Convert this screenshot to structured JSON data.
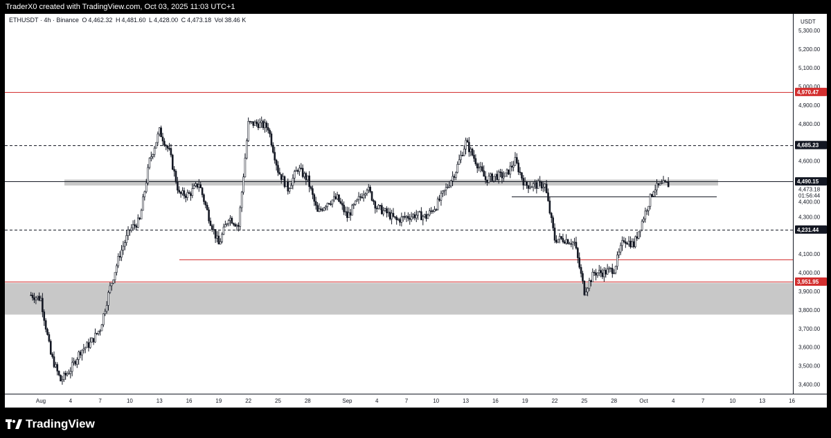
{
  "caption": "TraderX0 created with TradingView.com, Oct 03, 2025 11:03 UTC+1",
  "legend": {
    "symbol": "ETHUSDT · 4h · Binance",
    "open_label": "O",
    "open": "4,462.32",
    "high_label": "H",
    "high": "4,481.60",
    "low_label": "L",
    "low": "4,428.00",
    "close_label": "C",
    "close": "4,473.18",
    "vol_label": "Vol",
    "vol": "38.46 K"
  },
  "axis": {
    "currency": "USDT",
    "price_ticks": [
      "5,300.00",
      "5,200.00",
      "5,100.00",
      "5,000.00",
      "4,900.00",
      "4,800.00",
      "4,600.00",
      "4,300.00",
      "4,100.00",
      "4,000.00",
      "3,900.00",
      "3,800.00",
      "3,700.00",
      "3,600.00",
      "3,500.00",
      "3,400.00"
    ],
    "time_ticks": [
      "Aug",
      "4",
      "7",
      "10",
      "13",
      "16",
      "19",
      "22",
      "25",
      "28",
      "Sep",
      "4",
      "7",
      "10",
      "13",
      "16",
      "19",
      "22",
      "25",
      "28",
      "Oct",
      "4",
      "7",
      "10",
      "13",
      "16"
    ]
  },
  "price_tags": [
    {
      "label": "4,970.47",
      "color": "#d32f2f"
    },
    {
      "label": "4,685.23",
      "color": "#131722"
    },
    {
      "label": "4,490.15",
      "color": "#131722"
    },
    {
      "label": "4,231.44",
      "color": "#131722"
    },
    {
      "label": "3,951.95",
      "color": "#d32f2f"
    }
  ],
  "current": {
    "price": "4,473.18",
    "countdown": "01:56:44",
    "extra": "4,400.00"
  },
  "branding": "TradingView",
  "chart_data": {
    "type": "candlestick",
    "symbol": "ETHUSDT",
    "interval": "4h",
    "exchange": "Binance",
    "ylim": [
      3350,
      5390
    ],
    "ohlc_last": {
      "open": 4462.32,
      "high": 4481.6,
      "low": 4428.0,
      "close": 4473.18,
      "volume": "38.46 K"
    },
    "horizontal_levels": [
      {
        "price": 4970.47,
        "style": "solid",
        "color": "#d32f2f"
      },
      {
        "price": 4685.23,
        "style": "dashed",
        "color": "#131722"
      },
      {
        "price": 4490.15,
        "style": "solid",
        "color": "#131722"
      },
      {
        "price": 4231.44,
        "style": "dashed",
        "color": "#131722"
      },
      {
        "price": 4070,
        "style": "solid",
        "color": "#d32f2f"
      },
      {
        "price": 4410,
        "style": "solid",
        "color": "#131722"
      },
      {
        "price": 3951.95,
        "style": "solid",
        "color": "#d32f2f"
      }
    ],
    "zones": [
      {
        "from": 4468,
        "to": 4500,
        "color": "#c8c8c8"
      },
      {
        "from": 3775,
        "to": 3945,
        "color": "#c8c8c8"
      }
    ],
    "price_path": [
      [
        "Jul 31",
        3880
      ],
      [
        "Aug 1",
        3860
      ],
      [
        "Aug 2",
        3560
      ],
      [
        "Aug 3",
        3420
      ],
      [
        "Aug 4",
        3480
      ],
      [
        "Aug 5",
        3580
      ],
      [
        "Aug 6",
        3620
      ],
      [
        "Aug 7",
        3700
      ],
      [
        "Aug 8",
        3920
      ],
      [
        "Aug 9",
        4100
      ],
      [
        "Aug 10",
        4230
      ],
      [
        "Aug 11",
        4280
      ],
      [
        "Aug 12",
        4600
      ],
      [
        "Aug 13",
        4760
      ],
      [
        "Aug 14",
        4650
      ],
      [
        "Aug 15",
        4420
      ],
      [
        "Aug 16",
        4420
      ],
      [
        "Aug 17",
        4480
      ],
      [
        "Aug 18",
        4300
      ],
      [
        "Aug 19",
        4150
      ],
      [
        "Aug 20",
        4300
      ],
      [
        "Aug 21",
        4250
      ],
      [
        "Aug 22",
        4800
      ],
      [
        "Aug 23",
        4800
      ],
      [
        "Aug 24",
        4780
      ],
      [
        "Aug 25",
        4550
      ],
      [
        "Aug 26",
        4450
      ],
      [
        "Aug 27",
        4560
      ],
      [
        "Aug 28",
        4500
      ],
      [
        "Aug 29",
        4320
      ],
      [
        "Aug 30",
        4380
      ],
      [
        "Aug 31",
        4400
      ],
      [
        "Sep 1",
        4300
      ],
      [
        "Sep 2",
        4380
      ],
      [
        "Sep 3",
        4460
      ],
      [
        "Sep 4",
        4350
      ],
      [
        "Sep 5",
        4320
      ],
      [
        "Sep 6",
        4280
      ],
      [
        "Sep 7",
        4300
      ],
      [
        "Sep 8",
        4310
      ],
      [
        "Sep 9",
        4300
      ],
      [
        "Sep 10",
        4360
      ],
      [
        "Sep 11",
        4450
      ],
      [
        "Sep 12",
        4550
      ],
      [
        "Sep 13",
        4700
      ],
      [
        "Sep 14",
        4600
      ],
      [
        "Sep 15",
        4500
      ],
      [
        "Sep 16",
        4520
      ],
      [
        "Sep 17",
        4520
      ],
      [
        "Sep 18",
        4600
      ],
      [
        "Sep 19",
        4470
      ],
      [
        "Sep 20",
        4470
      ],
      [
        "Sep 21",
        4470
      ],
      [
        "Sep 22",
        4180
      ],
      [
        "Sep 23",
        4180
      ],
      [
        "Sep 24",
        4160
      ],
      [
        "Sep 25",
        3900
      ],
      [
        "Sep 26",
        4000
      ],
      [
        "Sep 27",
        4000
      ],
      [
        "Sep 28",
        4020
      ],
      [
        "Sep 29",
        4180
      ],
      [
        "Sep 30",
        4150
      ],
      [
        "Oct 1",
        4300
      ],
      [
        "Oct 2",
        4450
      ],
      [
        "Oct 3",
        4473
      ]
    ]
  }
}
